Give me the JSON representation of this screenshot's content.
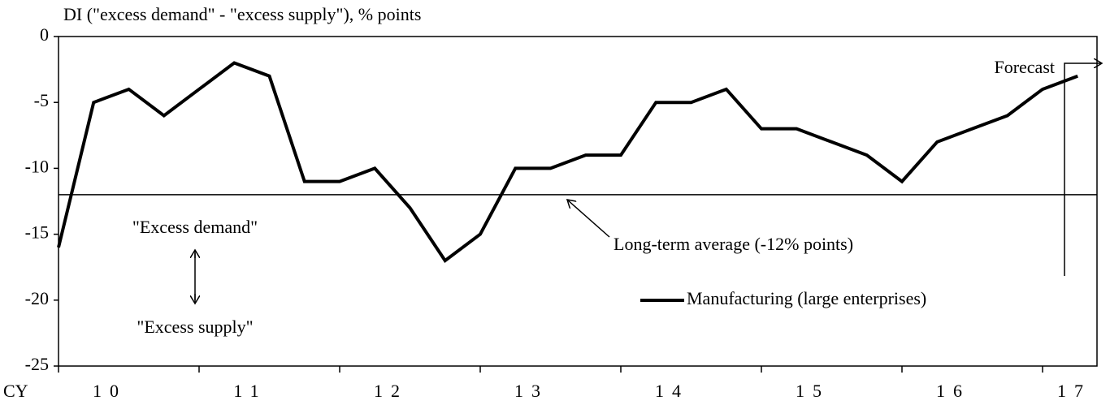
{
  "chart_data": {
    "type": "line",
    "y_axis_label": "DI (\"excess demand\" - \"excess supply\"), % points",
    "x_prefix": "CY",
    "year_labels": [
      "10",
      "11",
      "12",
      "13",
      "14",
      "15",
      "16",
      "17"
    ],
    "series": [
      {
        "name": "Manufacturing (large enterprises)",
        "color": "#000000",
        "values": [
          -16,
          -5,
          -4,
          -6,
          -4,
          -2,
          -3,
          -11,
          -11,
          -10,
          -13,
          -17,
          -15,
          -10,
          -10,
          -9,
          -9,
          -5,
          -5,
          -4,
          -7,
          -7,
          -8,
          -9,
          -11,
          -8,
          -7,
          -6,
          -4,
          -3
        ]
      }
    ],
    "average": {
      "value": -12,
      "label": "Long-term average (-12% points)"
    },
    "annotations": {
      "demand": "\"Excess demand\"",
      "supply": "\"Excess supply\"",
      "forecast": "Forecast"
    },
    "ylim": [
      -25,
      0
    ],
    "yticks": [
      -25,
      -20,
      -15,
      -10,
      -5,
      0
    ]
  }
}
